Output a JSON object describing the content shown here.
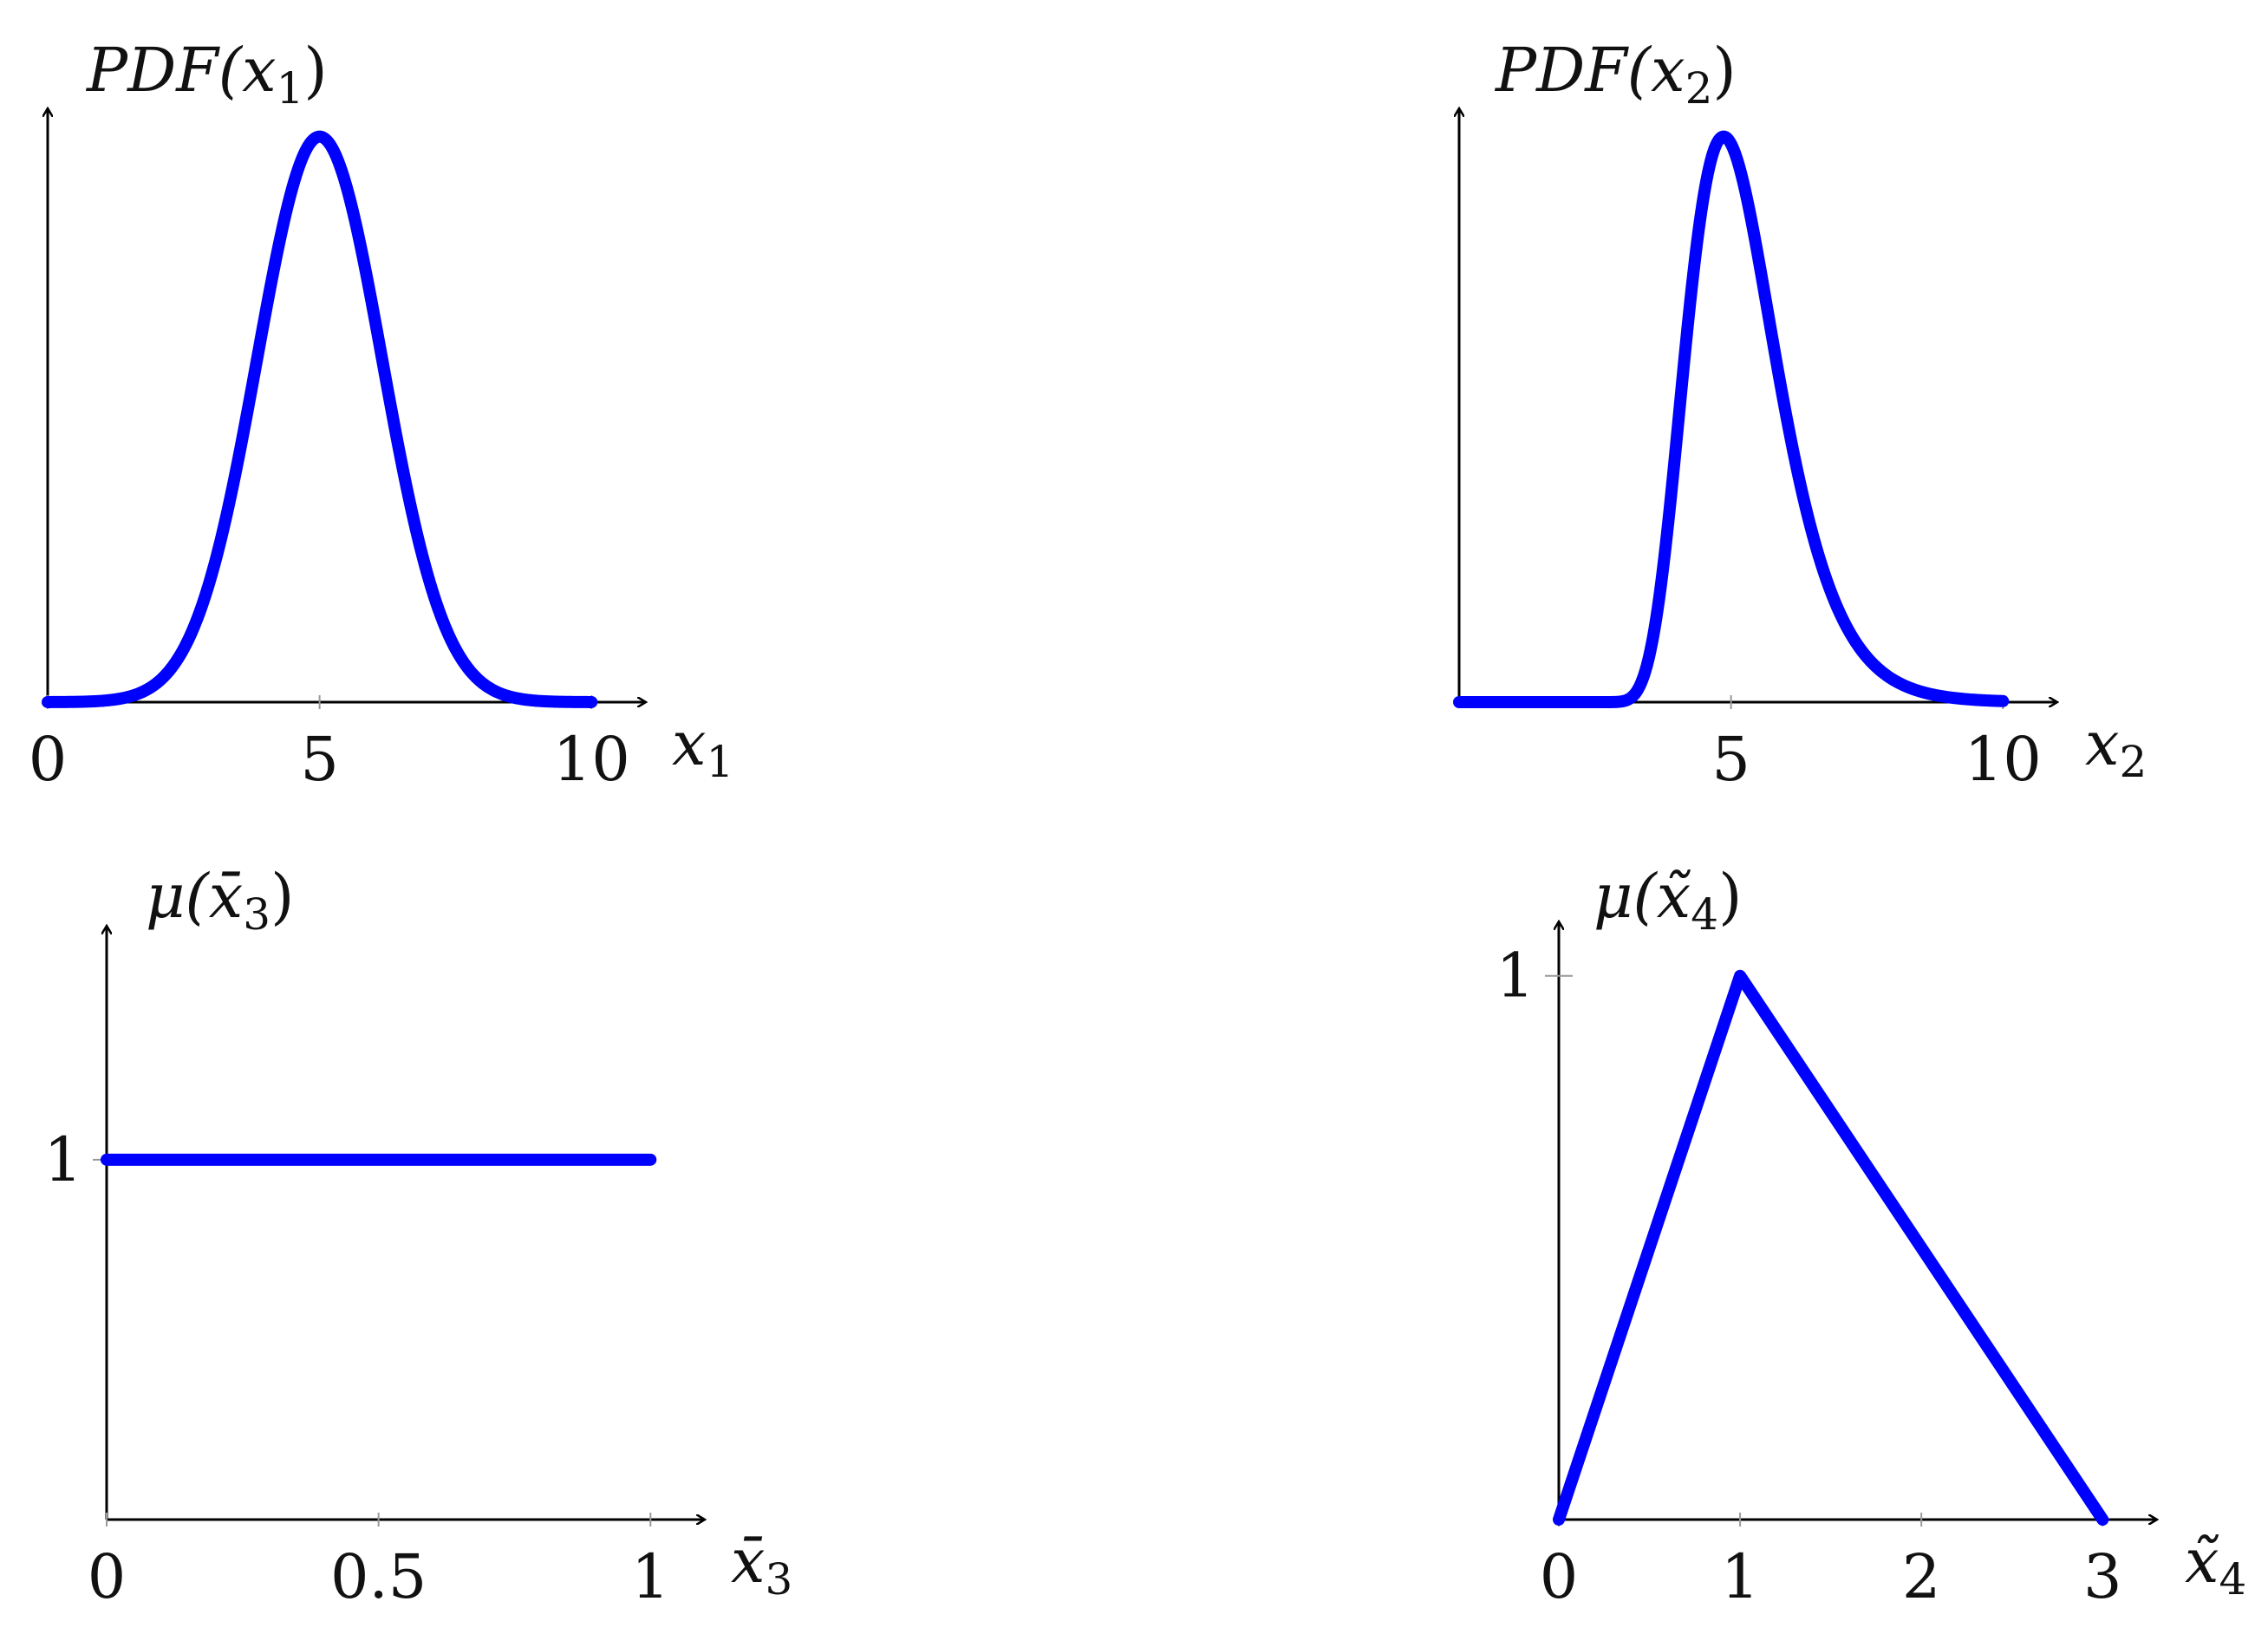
{
  "colors": {
    "curve": "#0000ff",
    "axis": "#000000"
  },
  "chart_data": [
    {
      "id": "p1",
      "type": "line",
      "title": "",
      "xlabel": "x",
      "xlabel_sub": "1",
      "ylabel": "PDF(x",
      "ylabel_sub": "1",
      "ylabel_close": ")",
      "xlim": [
        0,
        11
      ],
      "ylim": [
        0,
        1.05
      ],
      "xticks": [
        "0",
        "5",
        "10"
      ],
      "xtick_values": [
        0,
        5,
        10
      ],
      "yticks": [],
      "grid": false,
      "curve": {
        "kind": "gaussian",
        "x_range": [
          0,
          10
        ],
        "mean": 5,
        "sd": 1.15
      }
    },
    {
      "id": "p2",
      "type": "line",
      "title": "",
      "xlabel": "x",
      "xlabel_sub": "2",
      "ylabel": "PDF(x",
      "ylabel_sub": "2",
      "ylabel_close": ")",
      "xlim": [
        0,
        11
      ],
      "ylim": [
        0,
        1.05
      ],
      "xticks": [
        "5",
        "10"
      ],
      "xtick_values": [
        5,
        10
      ],
      "yticks": [],
      "grid": false,
      "curve": {
        "kind": "lognormal",
        "x_range": [
          0,
          10
        ],
        "shift": 2,
        "mu": 1.136,
        "sigma": 0.29
      }
    },
    {
      "id": "p3",
      "type": "line",
      "title": "",
      "xlabel": "x̄",
      "xlabel_sub": "3",
      "ylabel": "μ(x̄",
      "ylabel_sub": "3",
      "ylabel_close": ")",
      "xlim": [
        0,
        1.1
      ],
      "ylim": [
        0,
        1.65
      ],
      "xticks": [
        "0",
        "0.5",
        "1"
      ],
      "xtick_values": [
        0,
        0.5,
        1
      ],
      "yticks": [
        "1"
      ],
      "ytick_values": [
        1
      ],
      "grid": false,
      "x": [
        0,
        1
      ],
      "y": [
        1,
        1
      ]
    },
    {
      "id": "p4",
      "type": "line",
      "title": "",
      "xlabel": "x̃",
      "xlabel_sub": "4",
      "ylabel": "μ(x̃",
      "ylabel_sub": "4",
      "ylabel_close": ")",
      "xlim": [
        0,
        3.3
      ],
      "ylim": [
        0,
        1.1
      ],
      "xticks": [
        "0",
        "1",
        "2",
        "3"
      ],
      "xtick_values": [
        0,
        1,
        2,
        3
      ],
      "yticks": [
        "1"
      ],
      "ytick_values": [
        1
      ],
      "grid": false,
      "x": [
        0,
        1,
        3
      ],
      "y": [
        0,
        1,
        0
      ]
    }
  ]
}
